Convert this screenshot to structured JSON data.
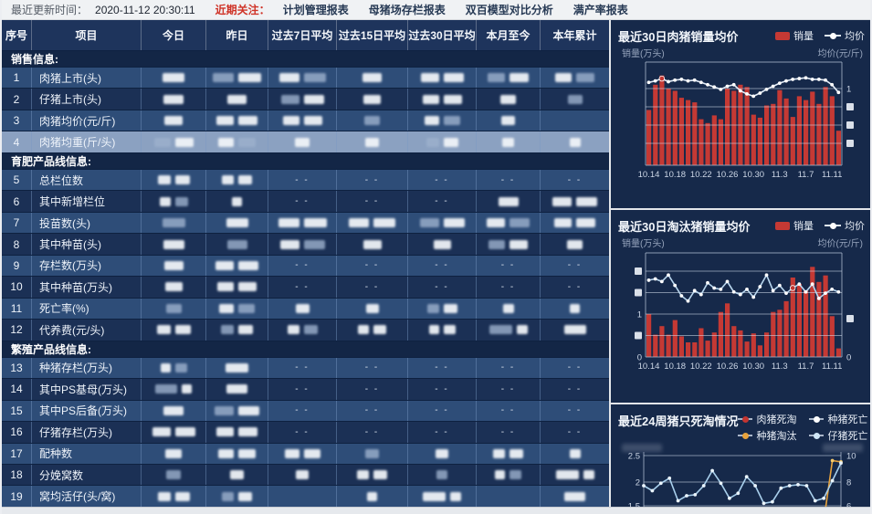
{
  "topbar": {
    "update_label": "最近更新时间：",
    "update_time": "2020-11-12 20:30:11",
    "focus_label": "近期关注：",
    "tabs": [
      "计划管理报表",
      "母猪场存栏报表",
      "双百模型对比分析",
      "满产率报表"
    ]
  },
  "table": {
    "headers": [
      "序号",
      "项目",
      "今日",
      "昨日",
      "过去7日平均",
      "过去15日平均",
      "过去30日平均",
      "本月至今",
      "本年累计"
    ],
    "rows": [
      {
        "section": "销售信息:"
      },
      {
        "no": "1",
        "label": "肉猪上市(头)",
        "cells": [
          "b",
          "b2",
          "b2",
          "b",
          "b2",
          "b2",
          "b2"
        ]
      },
      {
        "no": "2",
        "label": "仔猪上市(头)",
        "cells": [
          "b",
          "b",
          "b2",
          "b",
          "b2",
          "b",
          "b"
        ]
      },
      {
        "no": "3",
        "label": "肉猪均价(元/斤)",
        "cells": [
          "b",
          "b2",
          "b2",
          "b",
          "b2",
          "b",
          "e"
        ]
      },
      {
        "no": "4",
        "label": "肉猪均重(斤/头)",
        "cells": [
          "b2",
          "b2",
          "b",
          "b",
          "b2",
          "b",
          "b"
        ],
        "highlight": true
      },
      {
        "section": "育肥产品线信息:"
      },
      {
        "no": "5",
        "label": "总栏位数",
        "cells": [
          "b2",
          "b2",
          "d",
          "d",
          "d",
          "d",
          "d"
        ]
      },
      {
        "no": "6",
        "label": "其中新增栏位",
        "cells": [
          "b2",
          "b",
          "d",
          "d",
          "d",
          "b",
          "b2"
        ]
      },
      {
        "no": "7",
        "label": "投苗数(头)",
        "cells": [
          "b",
          "b",
          "b2",
          "b2",
          "b2",
          "b2",
          "b2"
        ]
      },
      {
        "no": "8",
        "label": "其中种苗(头)",
        "cells": [
          "b",
          "b",
          "b2",
          "b",
          "b",
          "b2",
          "b"
        ]
      },
      {
        "no": "9",
        "label": "存栏数(万头)",
        "cells": [
          "b",
          "b2",
          "d",
          "d",
          "d",
          "d",
          "d"
        ]
      },
      {
        "no": "10",
        "label": "其中种苗(万头)",
        "cells": [
          "b",
          "b2",
          "d",
          "d",
          "d",
          "d",
          "d"
        ]
      },
      {
        "no": "11",
        "label": "死亡率(%)",
        "cells": [
          "b",
          "b2",
          "b",
          "b",
          "b2",
          "b",
          "b"
        ]
      },
      {
        "no": "12",
        "label": "代养费(元/头)",
        "cells": [
          "b2",
          "b2",
          "b2",
          "b2",
          "b2",
          "b2",
          "b"
        ]
      },
      {
        "section": "繁殖产品线信息:"
      },
      {
        "no": "13",
        "label": "种猪存栏(万头)",
        "cells": [
          "b2",
          "b",
          "d",
          "d",
          "d",
          "d",
          "d"
        ]
      },
      {
        "no": "14",
        "label": "其中PS基母(万头)",
        "cells": [
          "b2",
          "b",
          "d",
          "d",
          "d",
          "d",
          "d"
        ]
      },
      {
        "no": "15",
        "label": "其中PS后备(万头)",
        "cells": [
          "b",
          "b2",
          "d",
          "d",
          "d",
          "d",
          "d"
        ]
      },
      {
        "no": "16",
        "label": "仔猪存栏(万头)",
        "cells": [
          "b2",
          "b2",
          "d",
          "d",
          "d",
          "d",
          "d"
        ]
      },
      {
        "no": "17",
        "label": "配种数",
        "cells": [
          "b",
          "b2",
          "b2",
          "b",
          "b",
          "b2",
          "b"
        ]
      },
      {
        "no": "18",
        "label": "分娩窝数",
        "cells": [
          "b",
          "b",
          "b",
          "b2",
          "b",
          "b2",
          "b2"
        ]
      },
      {
        "no": "19",
        "label": "窝均活仔(头/窝)",
        "cells": [
          "b2",
          "b2",
          "e",
          "b",
          "b2",
          "e",
          "b"
        ]
      }
    ]
  },
  "chart_data": [
    {
      "type": "bar",
      "title": "最近30日肉猪销量均价",
      "legend": [
        "销量",
        "均价"
      ],
      "ylabel_left": "销量(万头)",
      "ylabel_right": "均价(元/斤)",
      "x_ticks": [
        "10.14",
        "10.18",
        "10.22",
        "10.26",
        "10.30",
        "11.3",
        "11.7",
        "11.11"
      ],
      "bars": {
        "name": "销量",
        "values": [
          0.72,
          1.05,
          1.17,
          1.0,
          0.97,
          0.88,
          0.85,
          0.82,
          0.6,
          0.55,
          0.65,
          0.6,
          1.0,
          0.97,
          1.05,
          1.02,
          0.66,
          0.62,
          0.78,
          0.8,
          0.98,
          0.87,
          0.63,
          0.9,
          0.85,
          0.96,
          0.8,
          1.02,
          0.9,
          0.45
        ]
      },
      "line": {
        "name": "均价",
        "values": [
          1.08,
          1.1,
          1.13,
          1.09,
          1.11,
          1.12,
          1.1,
          1.11,
          1.08,
          1.05,
          1.02,
          0.99,
          1.03,
          1.05,
          0.97,
          0.93,
          0.9,
          0.94,
          0.99,
          1.03,
          1.07,
          1.1,
          1.12,
          1.13,
          1.14,
          1.12,
          1.12,
          1.11,
          1.05,
          0.95
        ]
      },
      "red_dot_index": 2,
      "left_ticks": [
        "",
        "",
        "",
        ""
      ],
      "right_ticks": [
        "1",
        "",
        "",
        ""
      ],
      "ylim_left": [
        0,
        1.35
      ],
      "ylim_right": [
        0,
        1.35
      ],
      "colors": {
        "bar": "#c53934",
        "line": "#e2ecf7"
      }
    },
    {
      "type": "bar",
      "title": "最近30日淘汰猪销量均价",
      "legend": [
        "销量",
        "均价"
      ],
      "ylabel_left": "销量(万头)",
      "ylabel_right": "均价(元/斤)",
      "x_ticks": [
        "10.14",
        "10.18",
        "10.22",
        "10.26",
        "10.30",
        "11.3",
        "11.7",
        "11.11"
      ],
      "bars": {
        "name": "销量",
        "values": [
          1.0,
          0.52,
          0.72,
          0.52,
          0.86,
          0.48,
          0.34,
          0.34,
          0.67,
          0.38,
          0.57,
          1.05,
          1.25,
          0.72,
          0.62,
          0.36,
          0.55,
          0.27,
          0.57,
          1.05,
          1.1,
          1.3,
          1.85,
          1.7,
          1.55,
          2.1,
          1.75,
          1.9,
          0.95,
          0.2
        ]
      },
      "line": {
        "name": "均价",
        "values": [
          5.9,
          6.0,
          5.8,
          6.3,
          5.5,
          4.7,
          4.3,
          5.1,
          4.8,
          5.7,
          5.3,
          5.2,
          5.8,
          5.0,
          4.8,
          5.2,
          4.6,
          5.4,
          6.3,
          5.1,
          5.5,
          4.9,
          5.3,
          5.6,
          5.0,
          5.6,
          4.5,
          4.9,
          5.2,
          5.0
        ]
      },
      "red_dot_index": 22,
      "left_ticks": [
        "",
        "",
        "1",
        "",
        "0"
      ],
      "right_ticks": [
        "",
        "0"
      ],
      "ylim_left": [
        0,
        2.4
      ],
      "ylim_right": [
        0,
        8
      ],
      "colors": {
        "bar": "#c53934",
        "line": "#b9d7ef"
      }
    },
    {
      "type": "line",
      "title": "最近24周猪只死淘情况",
      "legend": [
        {
          "label": "肉猪死淘",
          "color": "#c23531"
        },
        {
          "label": "种猪死亡",
          "color": "#ffffff"
        },
        {
          "label": "种猪淘汰",
          "color": "#e8a33d"
        },
        {
          "label": "仔猪死亡",
          "color": "#cfe6f7"
        }
      ],
      "left_ticks": [
        "2.5",
        "2",
        "1.5"
      ],
      "right_ticks": [
        "10",
        "8",
        "6"
      ],
      "ylim_left": [
        1.5,
        2.5
      ],
      "ylim_right": [
        6,
        10
      ],
      "series": [
        {
          "name": "仔猪死亡",
          "axis": "left",
          "color": "#a8cfec",
          "values": [
            1.9,
            1.8,
            1.95,
            2.05,
            1.6,
            1.7,
            1.72,
            1.9,
            2.2,
            1.95,
            1.65,
            1.75,
            2.08,
            1.9,
            1.55,
            1.58,
            1.85,
            1.9,
            1.92,
            1.9,
            1.6,
            1.65,
            2.0,
            2.35
          ]
        },
        {
          "name": "种猪淘汰",
          "axis": "right",
          "color": "#e8a33d",
          "values": [
            4.2,
            4.2,
            4.2,
            4.2,
            4.2,
            4.2,
            4.2,
            4.2,
            4.2,
            4.2,
            4.2,
            4.2,
            4.2,
            4.2,
            4.2,
            4.2,
            4.2,
            4.2,
            4.2,
            5.3,
            4.6,
            4.8,
            9.6,
            9.5
          ]
        }
      ]
    }
  ]
}
